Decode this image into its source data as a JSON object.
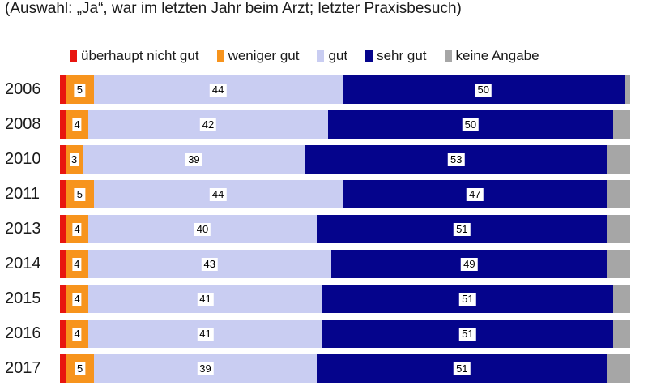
{
  "subtitle": "(Auswahl: „Ja“, war im letzten Jahr beim Arzt; letzter Praxisbesuch)",
  "colors": {
    "ueberhaupt_nicht_gut": "#e8150f",
    "weniger_gut": "#f7941d",
    "gut": "#c9cdf2",
    "sehr_gut": "#05048c",
    "keine_angabe": "#a6a6a6"
  },
  "chart_data": {
    "type": "bar",
    "orientation": "horizontal",
    "stacked": true,
    "categories": [
      "2006",
      "2008",
      "2010",
      "2011",
      "2013",
      "2014",
      "2015",
      "2016",
      "2017"
    ],
    "series": [
      {
        "name": "überhaupt nicht gut",
        "color": "#e8150f",
        "values": [
          1,
          1,
          1,
          1,
          1,
          1,
          1,
          1,
          1
        ],
        "labels": [
          "",
          "",
          "",
          "",
          "",
          "",
          "",
          "",
          ""
        ]
      },
      {
        "name": "weniger gut",
        "color": "#f7941d",
        "values": [
          5,
          4,
          3,
          5,
          4,
          4,
          4,
          4,
          5
        ],
        "labels": [
          "5",
          "4",
          "3",
          "5",
          "4",
          "4",
          "4",
          "4",
          "5"
        ]
      },
      {
        "name": "gut",
        "color": "#c9cdf2",
        "values": [
          44,
          42,
          39,
          44,
          40,
          43,
          41,
          41,
          39
        ],
        "labels": [
          "44",
          "42",
          "39",
          "44",
          "40",
          "43",
          "41",
          "41",
          "39"
        ]
      },
      {
        "name": "sehr gut",
        "color": "#05048c",
        "values": [
          50,
          50,
          53,
          47,
          51,
          49,
          51,
          51,
          51
        ],
        "labels": [
          "50",
          "50",
          "53",
          "47",
          "51",
          "49",
          "51",
          "51",
          "51"
        ]
      },
      {
        "name": "keine Angabe",
        "color": "#a6a6a6",
        "values": [
          1,
          3,
          4,
          4,
          4,
          4,
          3,
          3,
          4
        ],
        "labels": [
          "",
          "",
          "",
          "",
          "",
          "",
          "",
          "",
          ""
        ]
      }
    ],
    "xlim": [
      0,
      100
    ],
    "legend_position": "top",
    "grid": false
  }
}
